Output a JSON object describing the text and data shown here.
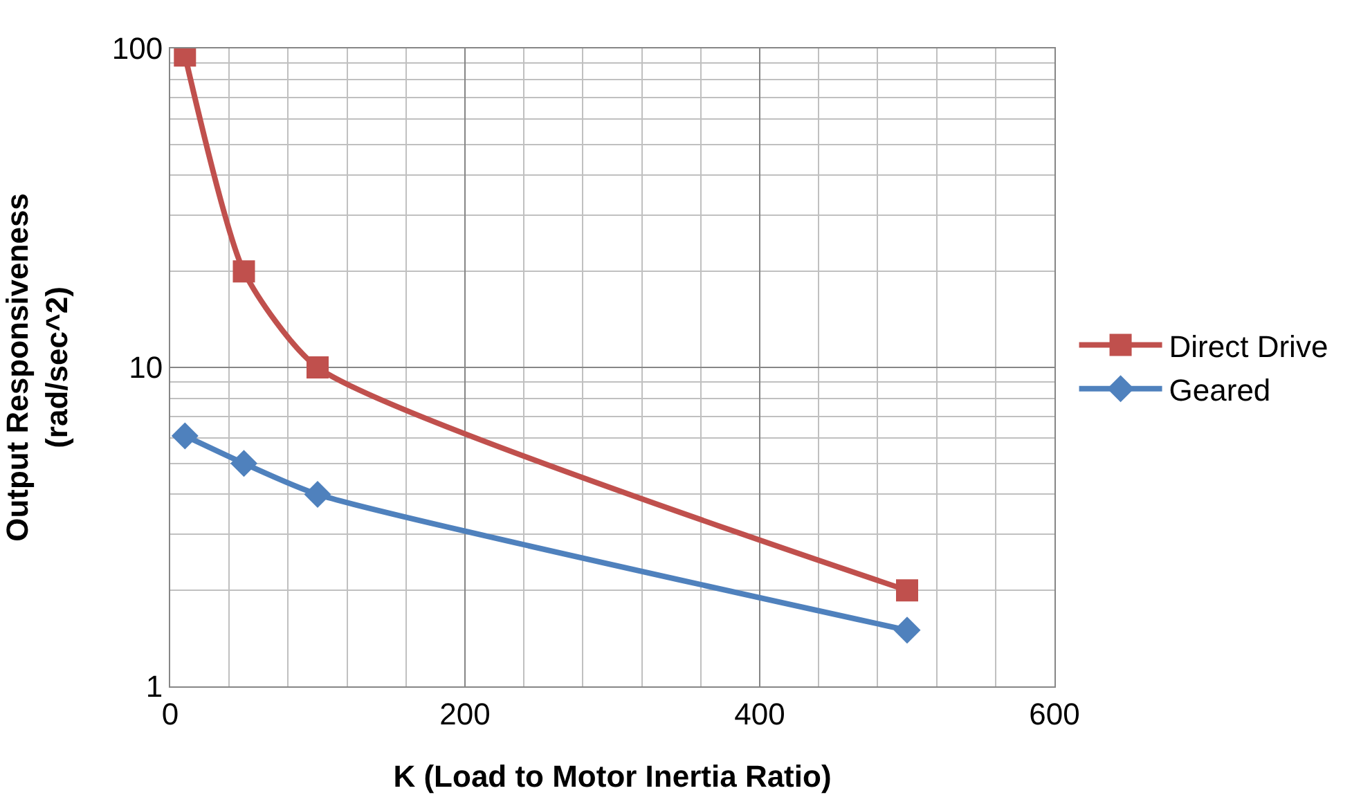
{
  "chart_data": {
    "type": "line",
    "xlabel": "K (Load to Motor Inertia Ratio)",
    "ylabel": "Output Responsiveness\n(rad/sec^2)",
    "series": [
      {
        "name": "Direct Drive",
        "color": "#c0504d",
        "marker": "square",
        "x": [
          10,
          50,
          100,
          500
        ],
        "values": [
          95,
          20,
          10,
          2
        ]
      },
      {
        "name": "Geared",
        "color": "#4f81bd",
        "marker": "diamond",
        "x": [
          10,
          50,
          100,
          500
        ],
        "values": [
          6.1,
          5,
          4,
          1.5
        ]
      }
    ],
    "xlim": [
      0,
      600
    ],
    "xticks": [
      0,
      200,
      400,
      600
    ],
    "ylim": [
      1,
      100
    ],
    "yticks": [
      1,
      10,
      100
    ],
    "log": "y",
    "grid": true,
    "legend": "right"
  }
}
